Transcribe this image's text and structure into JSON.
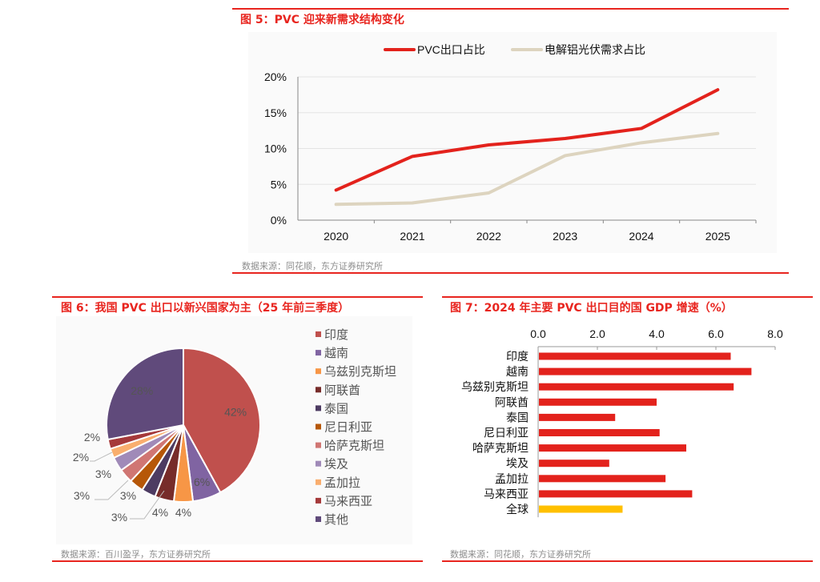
{
  "figure5": {
    "title": "图 5：PVC 迎来新需求结构变化",
    "source": "数据来源：同花顺，东方证券研究所"
  },
  "figure6": {
    "title": "图 6：我国 PVC 出口以新兴国家为主（25 年前三季度）",
    "source": "数据来源：百川盈孚，东方证券研究所"
  },
  "figure7": {
    "title": "图 7：2024 年主要 PVC 出口目的国 GDP 增速（%）",
    "source": "数据来源：同花顺，东方证券研究所"
  },
  "chart_data": [
    {
      "type": "line",
      "categories": [
        "2020",
        "2021",
        "2022",
        "2023",
        "2024",
        "2025"
      ],
      "ylim": [
        0,
        20
      ],
      "yticks": [
        "0%",
        "5%",
        "10%",
        "15%",
        "20%"
      ],
      "grid": true,
      "legend_position": "top",
      "series": [
        {
          "name": "PVC出口占比",
          "color": "#e3221c",
          "values": [
            4.2,
            8.9,
            10.5,
            11.4,
            12.8,
            18.2
          ]
        },
        {
          "name": "电解铝光伏需求占比",
          "color": "#ddd4bf",
          "values": [
            2.2,
            2.4,
            3.8,
            9.0,
            10.8,
            12.1
          ]
        }
      ]
    },
    {
      "type": "pie",
      "legend_position": "right",
      "slices": [
        {
          "label": "印度",
          "value": 42,
          "text": "42%",
          "color": "#c0504d"
        },
        {
          "label": "越南",
          "value": 6,
          "text": "6%",
          "color": "#8064a2"
        },
        {
          "label": "乌兹别克斯坦",
          "value": 4,
          "text": "4%",
          "color": "#f79646"
        },
        {
          "label": "阿联酋",
          "value": 4,
          "text": "4%",
          "color": "#772c2a"
        },
        {
          "label": "泰国",
          "value": 3,
          "text": "3%",
          "color": "#4d3b62"
        },
        {
          "label": "尼日利亚",
          "value": 3,
          "text": "3%",
          "color": "#b65708"
        },
        {
          "label": "哈萨克斯坦",
          "value": 3,
          "text": "3%",
          "color": "#d07673"
        },
        {
          "label": "埃及",
          "value": 3,
          "text": "3%",
          "color": "#a08ab8"
        },
        {
          "label": "孟加拉",
          "value": 2,
          "text": "2%",
          "color": "#f9ae6e"
        },
        {
          "label": "马来西亚",
          "value": 2,
          "text": "2%",
          "color": "#a5393a"
        },
        {
          "label": "其他",
          "value": 28,
          "text": "28%",
          "color": "#604a7b"
        }
      ]
    },
    {
      "type": "bar",
      "orientation": "horizontal",
      "xlim": [
        0,
        8
      ],
      "xticks": [
        "0.0",
        "2.0",
        "4.0",
        "6.0",
        "8.0"
      ],
      "categories": [
        "印度",
        "越南",
        "乌兹别克斯坦",
        "阿联酋",
        "泰国",
        "尼日利亚",
        "哈萨克斯坦",
        "埃及",
        "孟加拉",
        "马来西亚",
        "全球"
      ],
      "values": [
        6.5,
        7.2,
        6.6,
        4.0,
        2.6,
        4.1,
        5.0,
        2.4,
        4.3,
        5.2,
        2.85
      ],
      "colors": {
        "country": "#e3221c",
        "global": "#ffc000"
      }
    }
  ]
}
